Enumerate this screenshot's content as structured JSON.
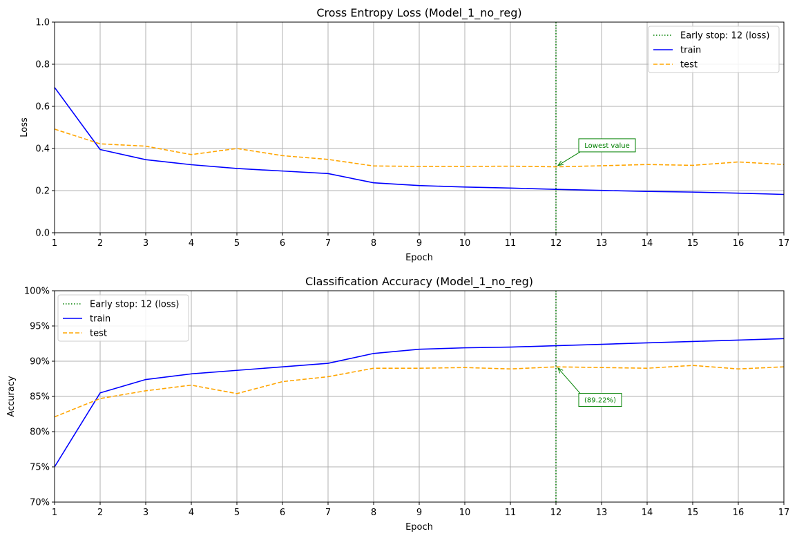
{
  "chart_data": [
    {
      "type": "line",
      "title": "Cross Entropy Loss (Model_1_no_reg)",
      "xlabel": "Epoch",
      "ylabel": "Loss",
      "xlim": [
        1,
        17
      ],
      "ylim": [
        0,
        1
      ],
      "xticks": [
        "1",
        "2",
        "3",
        "4",
        "5",
        "6",
        "7",
        "8",
        "9",
        "10",
        "11",
        "12",
        "13",
        "14",
        "15",
        "16",
        "17"
      ],
      "yticks": [
        "0.0",
        "0.2",
        "0.4",
        "0.6",
        "0.8",
        "1.0"
      ],
      "ytick_values": [
        0,
        0.2,
        0.4,
        0.6,
        0.8,
        1.0
      ],
      "grid": true,
      "legend_position": "upper-right",
      "x": [
        1,
        2,
        3,
        4,
        5,
        6,
        7,
        8,
        9,
        10,
        11,
        12,
        13,
        14,
        15,
        16,
        17
      ],
      "series": [
        {
          "name": "train",
          "color": "#0000ff",
          "style": "solid",
          "values": [
            0.69,
            0.395,
            0.347,
            0.323,
            0.305,
            0.293,
            0.281,
            0.237,
            0.224,
            0.217,
            0.212,
            0.206,
            0.201,
            0.196,
            0.193,
            0.188,
            0.182
          ]
        },
        {
          "name": "test",
          "color": "#ffa500",
          "style": "dashed",
          "values": [
            0.492,
            0.422,
            0.411,
            0.371,
            0.4,
            0.366,
            0.348,
            0.317,
            0.315,
            0.315,
            0.316,
            0.313,
            0.318,
            0.324,
            0.32,
            0.336,
            0.324
          ]
        }
      ],
      "early_stop": {
        "x": 12,
        "label": "Early stop: 12 (loss)",
        "color": "#008000"
      },
      "annotation": {
        "text": "Lowest value",
        "x": 12,
        "y": 0.313,
        "text_x": 12.5,
        "text_y": 0.415
      }
    },
    {
      "type": "line",
      "title": "Classification Accuracy (Model_1_no_reg)",
      "xlabel": "Epoch",
      "ylabel": "Accuracy",
      "xlim": [
        1,
        17
      ],
      "ylim": [
        0.7,
        1.0
      ],
      "xticks": [
        "1",
        "2",
        "3",
        "4",
        "5",
        "6",
        "7",
        "8",
        "9",
        "10",
        "11",
        "12",
        "13",
        "14",
        "15",
        "16",
        "17"
      ],
      "yticks": [
        "70%",
        "75%",
        "80%",
        "85%",
        "90%",
        "95%",
        "100%"
      ],
      "ytick_values": [
        0.7,
        0.75,
        0.8,
        0.85,
        0.9,
        0.95,
        1.0
      ],
      "grid": true,
      "legend_position": "upper-left",
      "x": [
        1,
        2,
        3,
        4,
        5,
        6,
        7,
        8,
        9,
        10,
        11,
        12,
        13,
        14,
        15,
        16,
        17
      ],
      "series": [
        {
          "name": "train",
          "color": "#0000ff",
          "style": "solid",
          "values": [
            0.75,
            0.855,
            0.874,
            0.882,
            0.887,
            0.892,
            0.897,
            0.911,
            0.917,
            0.919,
            0.92,
            0.922,
            0.924,
            0.926,
            0.928,
            0.93,
            0.932
          ]
        },
        {
          "name": "test",
          "color": "#ffa500",
          "style": "dashed",
          "values": [
            0.821,
            0.847,
            0.858,
            0.866,
            0.854,
            0.871,
            0.878,
            0.89,
            0.89,
            0.891,
            0.889,
            0.892,
            0.891,
            0.89,
            0.894,
            0.889,
            0.892
          ]
        }
      ],
      "early_stop": {
        "x": 12,
        "label": "Early stop: 12 (loss)",
        "color": "#008000"
      },
      "annotation": {
        "text": "(89.22%)",
        "x": 12,
        "y": 0.8922,
        "text_x": 12.5,
        "text_y": 0.845
      }
    }
  ]
}
